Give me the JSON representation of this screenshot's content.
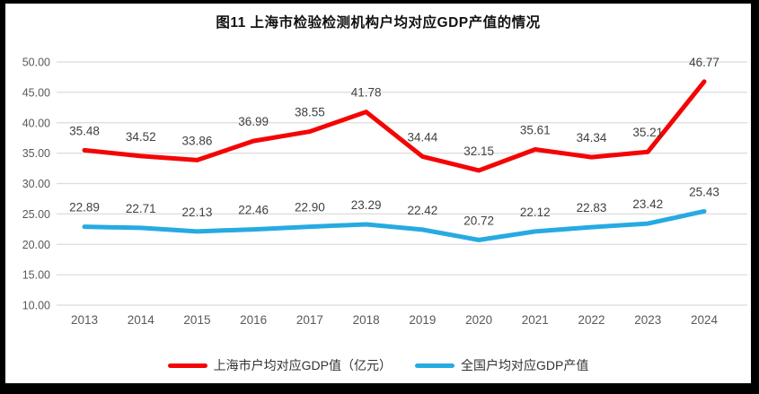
{
  "window": {
    "frame_color": "#000000",
    "background_color": "#ffffff"
  },
  "title": "图11 上海市检验检测机构户均对应GDP产值的情况",
  "chart_data": {
    "type": "line",
    "title": "图11 上海市检验检测机构户均对应GDP产值的情况",
    "categories": [
      "2013",
      "2014",
      "2015",
      "2016",
      "2017",
      "2018",
      "2019",
      "2020",
      "2021",
      "2022",
      "2023",
      "2024"
    ],
    "series": [
      {
        "name": "上海市户均对应GDP值（亿元）",
        "color": "#F40505",
        "values": [
          35.48,
          34.52,
          33.86,
          36.99,
          38.55,
          41.78,
          34.44,
          32.15,
          35.61,
          34.34,
          35.21,
          46.77
        ]
      },
      {
        "name": "全国户均对应GDP产值",
        "color": "#27AAE1",
        "values": [
          22.89,
          22.71,
          22.13,
          22.46,
          22.9,
          23.29,
          22.42,
          20.72,
          22.12,
          22.83,
          23.42,
          25.43
        ]
      }
    ],
    "ylim": [
      10,
      50
    ],
    "ytick_step": 5,
    "ytick_decimals": 2,
    "grid": true,
    "gridline_color": "#DCDCDC",
    "axis_label_color": "#595959",
    "data_label_color": "#404040",
    "data_labels": true,
    "legend_position": "bottom",
    "xlabel": "",
    "ylabel": ""
  }
}
